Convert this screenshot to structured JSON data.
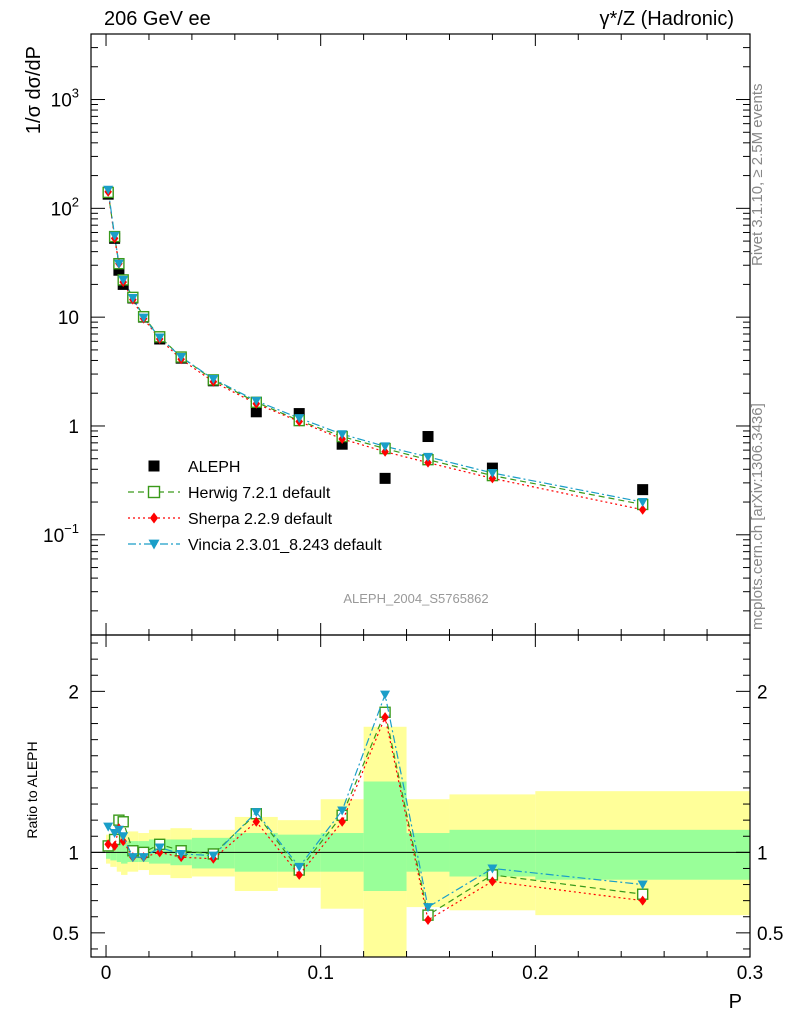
{
  "header": {
    "left": "206 GeV ee",
    "right": "γ*/Z (Hadronic)"
  },
  "side_labels": {
    "rivet": "Rivet 3.1.10, ≥ 2.5M events",
    "mcplots": "mcplots.cern.ch [arXiv:1306.3436]"
  },
  "watermark": "ALEPH_2004_S5765862",
  "chart_data": [
    {
      "panel": "main",
      "type": "scatter",
      "ylabel": "1/σ  dσ/dP",
      "yscale": "log",
      "xlim": [
        -0.007,
        0.3
      ],
      "ylim": [
        0.012,
        4000
      ],
      "y_ticks": [
        {
          "value": 0.1,
          "label": "10",
          "sup": "−1"
        },
        {
          "value": 1,
          "label": "1",
          "sup": ""
        },
        {
          "value": 10,
          "label": "10",
          "sup": ""
        },
        {
          "value": 100,
          "label": "10",
          "sup": "2"
        },
        {
          "value": 1000,
          "label": "10",
          "sup": "3"
        }
      ],
      "legend_position": "bottom-left",
      "series": [
        {
          "name": "ALEPH",
          "marker": "square-filled",
          "color": "#000000",
          "x": [
            0.001,
            0.004,
            0.006,
            0.008,
            0.0125,
            0.0175,
            0.025,
            0.035,
            0.05,
            0.07,
            0.09,
            0.11,
            0.13,
            0.15,
            0.18,
            0.25
          ],
          "y": [
            135,
            53,
            27,
            20,
            15,
            10,
            6.3,
            4.2,
            2.6,
            1.35,
            1.3,
            0.68,
            0.33,
            0.8,
            0.41,
            0.26
          ]
        },
        {
          "name": "Herwig 7.2.1 default",
          "marker": "square-open",
          "color": "#3a9a1a",
          "dash": "6,4",
          "x": [
            0.001,
            0.004,
            0.006,
            0.008,
            0.0125,
            0.0175,
            0.025,
            0.035,
            0.05,
            0.07,
            0.09,
            0.11,
            0.13,
            0.15,
            0.18,
            0.25
          ],
          "y": [
            140,
            55,
            31,
            22,
            15.2,
            10.1,
            6.6,
            4.3,
            2.65,
            1.65,
            1.12,
            0.8,
            0.62,
            0.49,
            0.35,
            0.19
          ]
        },
        {
          "name": "Sherpa 2.2.9 default",
          "marker": "diamond-filled",
          "color": "#ff0000",
          "dash": "2,3",
          "x": [
            0.001,
            0.004,
            0.006,
            0.008,
            0.0125,
            0.0175,
            0.025,
            0.035,
            0.05,
            0.07,
            0.09,
            0.11,
            0.13,
            0.15,
            0.18,
            0.25
          ],
          "y": [
            142,
            53,
            31,
            21,
            14.5,
            9.7,
            6.3,
            4.1,
            2.55,
            1.6,
            1.1,
            0.76,
            0.58,
            0.46,
            0.33,
            0.17
          ]
        },
        {
          "name": "Vincia 2.3.01_8.243 default",
          "marker": "triangle-down-filled",
          "color": "#1a9ec8",
          "dash": "8,3,2,3",
          "x": [
            0.001,
            0.004,
            0.006,
            0.008,
            0.0125,
            0.0175,
            0.025,
            0.035,
            0.05,
            0.07,
            0.09,
            0.11,
            0.13,
            0.15,
            0.18,
            0.25
          ],
          "y": [
            148,
            56,
            31,
            22,
            15,
            9.9,
            6.5,
            4.3,
            2.7,
            1.7,
            1.18,
            0.84,
            0.65,
            0.52,
            0.37,
            0.2
          ]
        }
      ]
    },
    {
      "panel": "ratio",
      "type": "line",
      "xlabel": "P",
      "ylabel": "Ratio to ALEPH",
      "xlim": [
        -0.007,
        0.3
      ],
      "ylim": [
        0.35,
        2.35
      ],
      "x_ticks": [
        0,
        0.1,
        0.2,
        0.3
      ],
      "x_tick_labels": [
        "0",
        "0.1",
        "0.2",
        "0.3"
      ],
      "y_ticks": [
        0.5,
        1,
        2
      ],
      "y_tick_labels": [
        "0.5",
        "1",
        "2"
      ],
      "bins": [
        {
          "lo": 0.0,
          "hi": 0.002,
          "green": [
            0.96,
            1.06
          ],
          "yellow": [
            0.93,
            1.11
          ]
        },
        {
          "lo": 0.002,
          "hi": 0.005,
          "green": [
            0.95,
            1.06
          ],
          "yellow": [
            0.91,
            1.11
          ]
        },
        {
          "lo": 0.005,
          "hi": 0.007,
          "green": [
            0.94,
            1.07
          ],
          "yellow": [
            0.88,
            1.12
          ]
        },
        {
          "lo": 0.007,
          "hi": 0.01,
          "green": [
            0.93,
            1.06
          ],
          "yellow": [
            0.86,
            1.12
          ]
        },
        {
          "lo": 0.01,
          "hi": 0.015,
          "green": [
            0.94,
            1.07
          ],
          "yellow": [
            0.88,
            1.13
          ]
        },
        {
          "lo": 0.015,
          "hi": 0.02,
          "green": [
            0.94,
            1.07
          ],
          "yellow": [
            0.89,
            1.12
          ]
        },
        {
          "lo": 0.02,
          "hi": 0.03,
          "green": [
            0.93,
            1.08
          ],
          "yellow": [
            0.86,
            1.14
          ]
        },
        {
          "lo": 0.03,
          "hi": 0.04,
          "green": [
            0.92,
            1.08
          ],
          "yellow": [
            0.84,
            1.15
          ]
        },
        {
          "lo": 0.04,
          "hi": 0.06,
          "green": [
            0.9,
            1.09
          ],
          "yellow": [
            0.85,
            1.14
          ]
        },
        {
          "lo": 0.06,
          "hi": 0.08,
          "green": [
            0.88,
            1.12
          ],
          "yellow": [
            0.76,
            1.22
          ]
        },
        {
          "lo": 0.08,
          "hi": 0.1,
          "green": [
            0.88,
            1.11
          ],
          "yellow": [
            0.78,
            1.2
          ]
        },
        {
          "lo": 0.1,
          "hi": 0.12,
          "green": [
            0.88,
            1.12
          ],
          "yellow": [
            0.65,
            1.33
          ]
        },
        {
          "lo": 0.12,
          "hi": 0.14,
          "green": [
            0.76,
            1.44
          ],
          "yellow": [
            0.35,
            1.78
          ]
        },
        {
          "lo": 0.14,
          "hi": 0.16,
          "green": [
            0.88,
            1.12
          ],
          "yellow": [
            0.66,
            1.33
          ]
        },
        {
          "lo": 0.16,
          "hi": 0.2,
          "green": [
            0.85,
            1.14
          ],
          "yellow": [
            0.64,
            1.36
          ]
        },
        {
          "lo": 0.2,
          "hi": 0.3,
          "green": [
            0.83,
            1.14
          ],
          "yellow": [
            0.61,
            1.38
          ]
        }
      ],
      "series": [
        {
          "name": "Herwig 7.2.1 default",
          "x": [
            0.001,
            0.004,
            0.006,
            0.008,
            0.0125,
            0.0175,
            0.025,
            0.035,
            0.05,
            0.07,
            0.09,
            0.11,
            0.13,
            0.15,
            0.18,
            0.25
          ],
          "y": [
            1.04,
            1.08,
            1.2,
            1.19,
            1.01,
            1.0,
            1.05,
            1.01,
            0.99,
            1.24,
            0.89,
            1.23,
            1.87,
            0.61,
            0.86,
            0.74
          ]
        },
        {
          "name": "Sherpa 2.2.9 default",
          "x": [
            0.001,
            0.004,
            0.006,
            0.008,
            0.0125,
            0.0175,
            0.025,
            0.035,
            0.05,
            0.07,
            0.09,
            0.11,
            0.13,
            0.15,
            0.18,
            0.25
          ],
          "y": [
            1.05,
            1.04,
            1.15,
            1.07,
            0.97,
            0.97,
            1.0,
            0.97,
            0.96,
            1.19,
            0.86,
            1.19,
            1.84,
            0.58,
            0.82,
            0.7
          ]
        },
        {
          "name": "Vincia 2.3.01_8.243 default",
          "x": [
            0.001,
            0.004,
            0.006,
            0.008,
            0.0125,
            0.0175,
            0.025,
            0.035,
            0.05,
            0.07,
            0.09,
            0.11,
            0.13,
            0.15,
            0.18,
            0.25
          ],
          "y": [
            1.16,
            1.12,
            1.14,
            1.1,
            0.97,
            0.97,
            1.03,
            0.99,
            0.98,
            1.25,
            0.91,
            1.26,
            1.98,
            0.66,
            0.9,
            0.8
          ]
        }
      ]
    }
  ]
}
